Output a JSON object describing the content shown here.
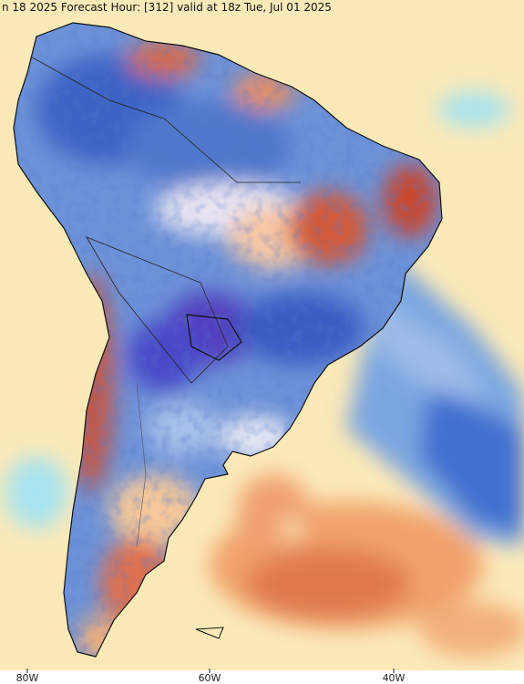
{
  "header": {
    "title": "n 18 2025   Forecast Hour: [312]   valid at 18z Tue, Jul 01 2025"
  },
  "longitude_labels": [
    "80W",
    "60W",
    "40W"
  ]
}
